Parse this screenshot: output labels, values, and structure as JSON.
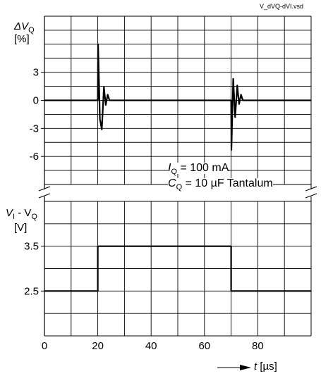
{
  "chart_data": {
    "type": "line",
    "source_file": "V_dVQ-dVI.vsd",
    "x_axis": {
      "min": 0,
      "max": 100,
      "ticks": [
        0,
        20,
        40,
        60,
        80
      ],
      "tick_labels": [
        "0",
        "20",
        "40",
        "60",
        "80"
      ],
      "label_symbol": "t",
      "label_unit": "[µs]",
      "grid_minor_step": 10
    },
    "panels": [
      {
        "name": "output-voltage-deviation",
        "y_symbol": "ΔV",
        "y_sub": "Q",
        "y_unit": "[%]",
        "ylim": [
          -9,
          9
        ],
        "ticks": [
          3,
          0,
          -3,
          -6
        ],
        "tick_labels": [
          "3",
          "0",
          "-3",
          "-6"
        ],
        "grid": true,
        "x": [
          0,
          20,
          20.1,
          20.8,
          21.5,
          22.3,
          23.0,
          23.7,
          24.4,
          25,
          70,
          70.1,
          70.8,
          71.5,
          72.3,
          73.0,
          73.7,
          74.4,
          75,
          100
        ],
        "y": [
          0,
          0,
          6.0,
          -2.0,
          -3.1,
          1.4,
          -0.5,
          0.6,
          0,
          0,
          0,
          -5.3,
          2.3,
          -1.8,
          1.6,
          -0.4,
          0.6,
          0,
          0,
          0
        ]
      },
      {
        "name": "input-voltage",
        "y_symbol": "V",
        "y_sub": "I",
        "y_mid": " - V",
        "y_sub2": "Q",
        "y_unit": "[V]",
        "ylim": [
          1.5,
          4.5
        ],
        "ticks": [
          3.5,
          2.5
        ],
        "tick_labels": [
          "3.5",
          "2.5"
        ],
        "grid": true,
        "x": [
          0,
          20,
          20,
          70,
          70,
          100
        ],
        "y": [
          2.5,
          2.5,
          3.5,
          3.5,
          2.5,
          2.5
        ]
      }
    ],
    "annotations": {
      "iq_symbol": "I",
      "iq_sub": "Q",
      "iq_value": " = 100 mA",
      "cq_symbol": "C",
      "cq_sub": "Q",
      "cq_value": " = 10 µF Tantalum"
    }
  }
}
